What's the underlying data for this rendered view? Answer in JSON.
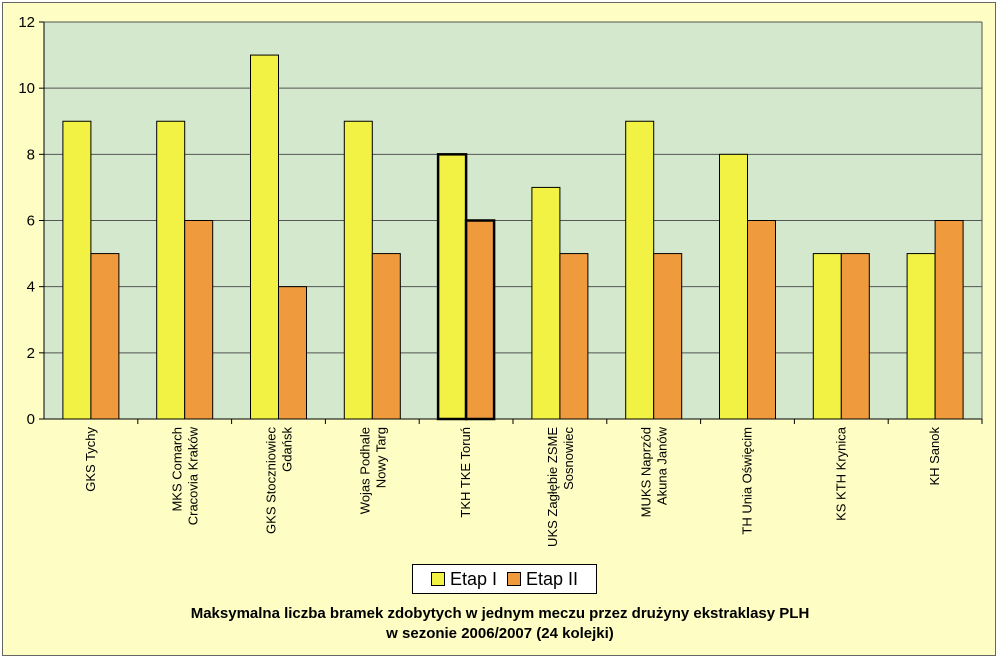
{
  "chart_data": {
    "type": "bar",
    "title_line1": "Maksymalna liczba bramek zdobytych w jednym meczu przez drużyny ekstraklasy PLH",
    "title_line2": "w sezonie 2006/2007 (24 kolejki)",
    "categories": [
      [
        "GKS Tychy"
      ],
      [
        "MKS Comarch",
        "Cracovia Kraków"
      ],
      [
        "GKS Stoczniowiec",
        "Gdańsk"
      ],
      [
        "Wojas Podhale",
        "Nowy Targ"
      ],
      [
        "TKH TKE Toruń"
      ],
      [
        "UKS Zagłębie ZSME",
        "Sosnowiec"
      ],
      [
        "MUKS Naprzód",
        "Akuna Janów"
      ],
      [
        "TH Unia Oświęcim"
      ],
      [
        "KS KTH Krynica"
      ],
      [
        "KH Sanok"
      ]
    ],
    "series": [
      {
        "name": "Etap I",
        "color": "#f2f244",
        "values": [
          9,
          9,
          11,
          9,
          8,
          7,
          9,
          8,
          5,
          5
        ]
      },
      {
        "name": "Etap II",
        "color": "#ef9a3c",
        "values": [
          5,
          6,
          4,
          5,
          6,
          5,
          5,
          6,
          5,
          6
        ]
      }
    ],
    "highlighted_category_index": 4,
    "ylim": [
      0,
      12
    ],
    "yticks": [
      0,
      2,
      4,
      6,
      8,
      10,
      12
    ],
    "plot_background": "#d3e8cc",
    "grid": true,
    "legend_position": "bottom-center"
  }
}
